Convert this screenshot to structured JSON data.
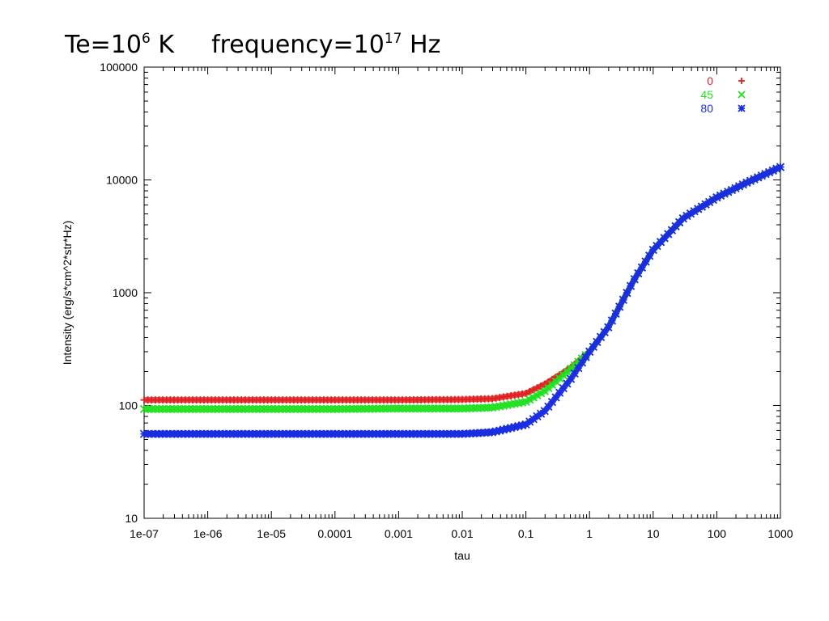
{
  "title": {
    "te_base": "Te=10",
    "te_exp": "6",
    "te_unit": "K",
    "freq_base": "frequency=10",
    "freq_exp": "17",
    "freq_unit": "Hz"
  },
  "chart_data": {
    "type": "scatter",
    "title": "",
    "xlabel": "tau",
    "ylabel": "Intensity (erg/s*cm^2*str*Hz)",
    "xscale": "log",
    "yscale": "log",
    "xlim": [
      1e-07,
      1000
    ],
    "ylim": [
      10,
      100000
    ],
    "xticks": [
      1e-07,
      1e-06,
      1e-05,
      0.0001,
      0.001,
      0.01,
      0.1,
      1,
      10,
      100,
      1000
    ],
    "xtick_labels": [
      "1e-07",
      "1e-06",
      "1e-05",
      "0.0001",
      "0.001",
      "0.01",
      "0.1",
      "1",
      "10",
      "100",
      "1000"
    ],
    "yticks": [
      10,
      100,
      1000,
      10000,
      100000
    ],
    "ytick_labels": [
      "10",
      "100",
      "1000",
      "10000",
      "100000"
    ],
    "grid": false,
    "legend_position": "top-right",
    "series": [
      {
        "name": "0",
        "color": "#e02020",
        "marker": "+",
        "x": [
          1e-07,
          1e-06,
          1e-05,
          0.0001,
          0.001,
          0.01,
          0.03,
          0.1,
          0.2,
          0.5,
          1,
          2,
          5,
          10,
          30,
          100,
          300,
          1000
        ],
        "y": [
          112,
          112,
          112,
          112,
          112,
          113,
          115,
          128,
          155,
          215,
          300,
          500,
          1300,
          2400,
          4600,
          7000,
          9500,
          13000
        ]
      },
      {
        "name": "45",
        "color": "#20e020",
        "marker": "x",
        "x": [
          1e-07,
          1e-06,
          1e-05,
          0.0001,
          0.001,
          0.01,
          0.03,
          0.1,
          0.2,
          0.5,
          1,
          2,
          5,
          10,
          30,
          100,
          300,
          1000
        ],
        "y": [
          93,
          93,
          93,
          93,
          94,
          94,
          96,
          108,
          135,
          210,
          300,
          500,
          1300,
          2400,
          4600,
          7000,
          9500,
          13000
        ]
      },
      {
        "name": "80",
        "color": "#1a2ee0",
        "marker": "*",
        "x": [
          1e-07,
          1e-06,
          1e-05,
          0.0001,
          0.001,
          0.01,
          0.03,
          0.1,
          0.2,
          0.5,
          1,
          2,
          5,
          10,
          30,
          100,
          300,
          1000
        ],
        "y": [
          56,
          56,
          56,
          56,
          56,
          56,
          58,
          68,
          90,
          170,
          300,
          500,
          1300,
          2400,
          4600,
          7000,
          9500,
          13000
        ]
      }
    ]
  }
}
